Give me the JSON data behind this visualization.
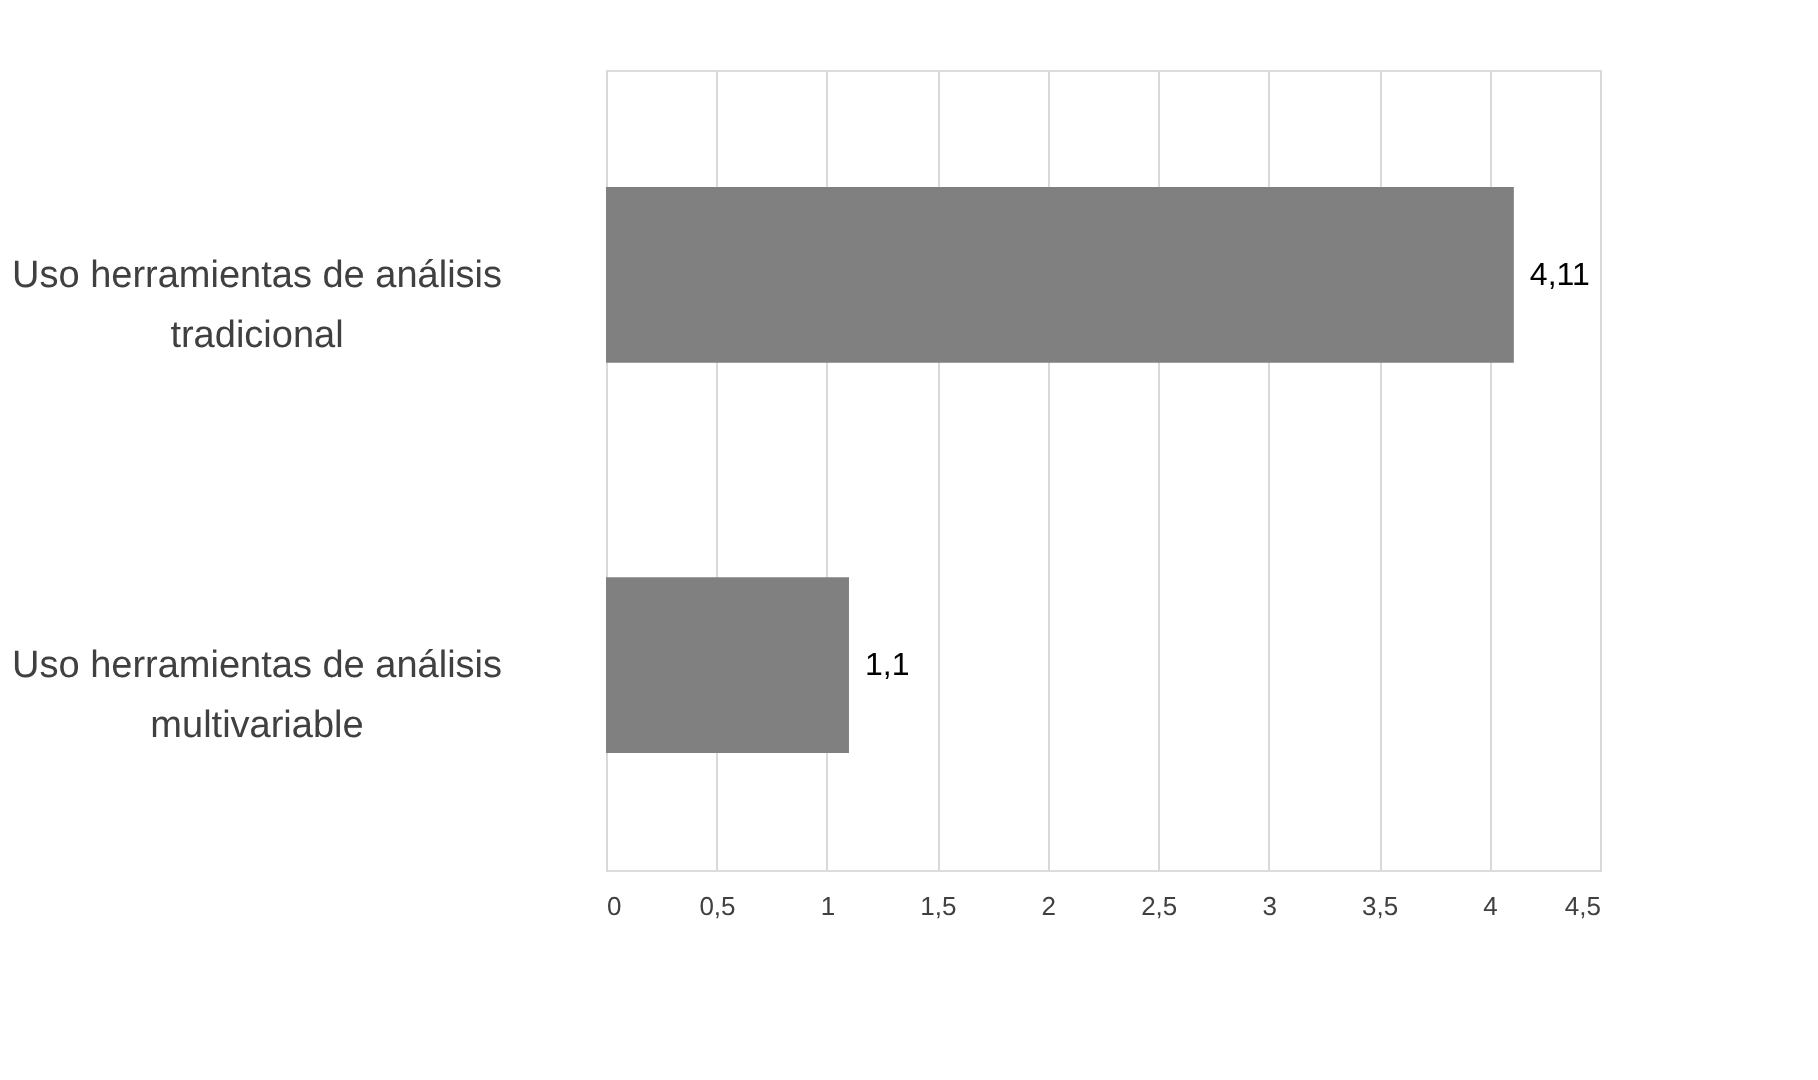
{
  "chart_data": {
    "type": "bar",
    "orientation": "horizontal",
    "categories": [
      "Uso herramientas de análisis\ntradicional",
      "Uso herramientas de análisis\nmultivariable"
    ],
    "values": [
      4.11,
      1.1
    ],
    "value_labels": [
      "4,11",
      "1,1"
    ],
    "color": "#808080",
    "xlim": [
      0,
      4.5
    ],
    "xticks": [
      0,
      {
        "value": 0.5,
        "label": "0,5"
      },
      1,
      {
        "value": 1.5,
        "label": "1,5"
      },
      2,
      {
        "value": 2.5,
        "label": "2,5"
      },
      3,
      {
        "value": 3.5,
        "label": "3,5"
      },
      4,
      {
        "value": 4.5,
        "label": "4,5"
      }
    ],
    "grid": "x"
  }
}
